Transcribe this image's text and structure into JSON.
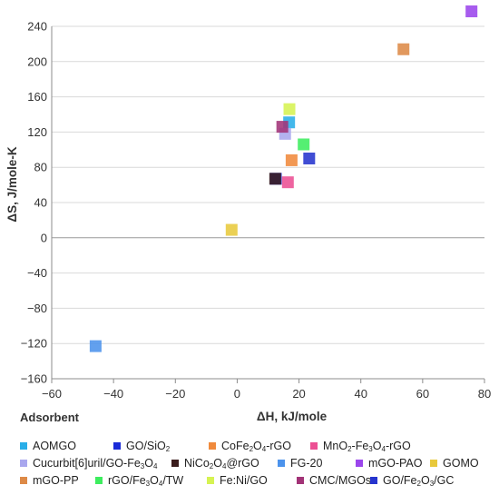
{
  "chart_data": {
    "type": "scatter",
    "title": "",
    "xlabel": "ΔH, kJ/mole",
    "ylabel": "ΔS, J/mole-K",
    "xlim": [
      -60,
      80
    ],
    "ylim": [
      -160,
      240
    ],
    "xticks": [
      "−60",
      "−40",
      "−20",
      "0",
      "20",
      "40",
      "60",
      "80"
    ],
    "yticks": [
      "−160",
      "−120",
      "−80",
      "−40",
      "0",
      "40",
      "80",
      "120",
      "160",
      "200",
      "240"
    ],
    "xtick_values": [
      -60,
      -40,
      -20,
      0,
      20,
      40,
      60,
      80
    ],
    "ytick_values": [
      -160,
      -120,
      -80,
      -40,
      0,
      40,
      80,
      120,
      160,
      200,
      240
    ],
    "grid": "horizontal",
    "legend_title": "Adsorbent",
    "legend_position": "bottom",
    "series": [
      {
        "name": "AOMGO",
        "color": "#29aee8",
        "points": [
          [
            16.8,
            131
          ]
        ]
      },
      {
        "name": "GO/SiO2",
        "color": "#1a2bd8",
        "points": [
          [
            12.5,
            67
          ]
        ]
      },
      {
        "name": "CoFe2O4-rGO",
        "color": "#f08a3c",
        "points": [
          [
            17.6,
            88
          ]
        ]
      },
      {
        "name": "MnO2-Fe3O4-rGO",
        "color": "#ec4f93",
        "points": [
          [
            16.4,
            63
          ]
        ]
      },
      {
        "name": "Cucurbit[6]uril/GO-Fe3O4",
        "color": "#a9a7ee",
        "points": [
          [
            15.5,
            118
          ]
        ]
      },
      {
        "name": "NiCo2O4@rGO",
        "color": "#3a1c1c",
        "points": [
          [
            12.3,
            67
          ]
        ]
      },
      {
        "name": "FG-20",
        "color": "#4c93ec",
        "points": [
          [
            -45.8,
            -123
          ]
        ]
      },
      {
        "name": "mGO-PAO",
        "color": "#9b46ec",
        "points": [
          [
            75.8,
            257
          ]
        ]
      },
      {
        "name": "GOMO",
        "color": "#e8c93c",
        "points": [
          [
            -1.8,
            9
          ]
        ]
      },
      {
        "name": "mGO-PP",
        "color": "#dd8a47",
        "points": [
          [
            53.8,
            214
          ]
        ]
      },
      {
        "name": "rGO/Fe3O4/TW",
        "color": "#3ded5e",
        "points": [
          [
            21.5,
            106
          ]
        ]
      },
      {
        "name": "Fe:Ni/GO",
        "color": "#d6f352",
        "points": [
          [
            16.9,
            146
          ]
        ]
      },
      {
        "name": "CMC/MGOs",
        "color": "#a23377",
        "points": [
          [
            14.6,
            126
          ]
        ]
      },
      {
        "name": "GO/Fe2O3/GC",
        "color": "#2634ce",
        "points": [
          [
            23.3,
            90
          ]
        ]
      }
    ]
  },
  "legend_labels": [
    {
      "main": "AOMGO"
    },
    {
      "main": "GO/SiO",
      "sub1": "2"
    },
    {
      "main": "CoFe",
      "sub1": "2",
      "mid1": "O",
      "sub2": "4",
      "tail": "-rGO"
    },
    {
      "main": "MnO",
      "sub1": "2",
      "mid1": "-Fe",
      "sub2": "3",
      "mid2": "O",
      "sub3": "4",
      "tail": "-rGO"
    },
    {
      "main": "Cucurbit[6]uril/GO-Fe",
      "sub1": "3",
      "mid1": "O",
      "sub2": "4"
    },
    {
      "main": "NiCo",
      "sub1": "2",
      "mid1": "O",
      "sub2": "4",
      "tail": "@rGO"
    },
    {
      "main": "FG-20"
    },
    {
      "main": "mGO-PAO"
    },
    {
      "main": "GOMO"
    },
    {
      "main": "mGO-PP"
    },
    {
      "main": "rGO/Fe",
      "sub1": "3",
      "mid1": "O",
      "sub2": "4",
      "tail": "/TW"
    },
    {
      "main": "Fe:Ni/GO"
    },
    {
      "main": "CMC/MGOs"
    },
    {
      "main": "GO/Fe",
      "sub1": "2",
      "mid1": "O",
      "sub2": "3",
      "tail": "/GC"
    }
  ]
}
